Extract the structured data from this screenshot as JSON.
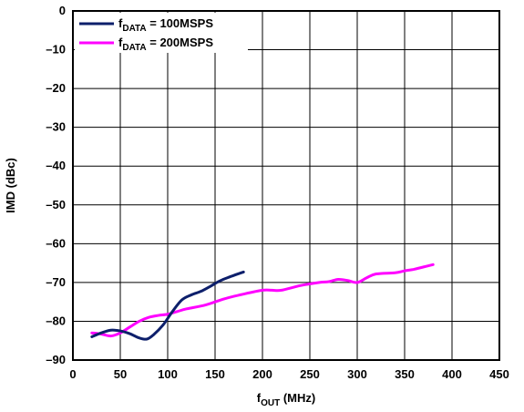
{
  "chart_data": {
    "type": "line",
    "xlabel": {
      "main": "f",
      "sub": "OUT",
      "rest": " (MHz)"
    },
    "ylabel": "IMD (dBc)",
    "xlim": [
      0,
      450
    ],
    "ylim": [
      -90,
      0
    ],
    "xticks": [
      0,
      50,
      100,
      150,
      200,
      250,
      300,
      350,
      400,
      450
    ],
    "yticks": [
      0,
      -10,
      -20,
      -30,
      -40,
      -50,
      -60,
      -70,
      -80,
      -90
    ],
    "xtick_labels": [
      "0",
      "50",
      "100",
      "150",
      "200",
      "250",
      "300",
      "350",
      "400",
      "450"
    ],
    "ytick_labels": [
      "0",
      "–10",
      "–20",
      "–30",
      "–40",
      "–50",
      "–60",
      "–70",
      "–80",
      "–90"
    ],
    "grid": true,
    "legend_position": "top-left",
    "series": [
      {
        "name": {
          "main": "f",
          "sub": "DATA",
          "rest": " = 100MSPS"
        },
        "color": "#0d1f6b",
        "x": [
          20,
          30,
          40,
          50,
          60,
          70,
          78,
          85,
          95,
          105,
          115,
          125,
          135,
          145,
          155,
          165,
          180
        ],
        "y": [
          -84,
          -83,
          -82.3,
          -82.5,
          -83.2,
          -84.3,
          -84.6,
          -83.5,
          -81,
          -77.5,
          -74.5,
          -73.2,
          -72.3,
          -71,
          -69.6,
          -68.6,
          -67.3
        ]
      },
      {
        "name": {
          "main": "f",
          "sub": "DATA",
          "rest": " = 200MSPS"
        },
        "color": "#ff00ff",
        "x": [
          20,
          30,
          40,
          50,
          60,
          70,
          80,
          90,
          100,
          110,
          120,
          140,
          160,
          180,
          200,
          210,
          220,
          240,
          260,
          270,
          280,
          290,
          300,
          310,
          320,
          340,
          350,
          360,
          370,
          380
        ],
        "y": [
          -83,
          -83.3,
          -83.8,
          -83,
          -81.5,
          -80,
          -79,
          -78.5,
          -78.2,
          -77.5,
          -76.8,
          -75.8,
          -74.2,
          -73,
          -72,
          -72,
          -72,
          -70.8,
          -70,
          -69.8,
          -69.2,
          -69.5,
          -70,
          -68.8,
          -67.8,
          -67.5,
          -67,
          -66.6,
          -66,
          -65.4
        ]
      }
    ]
  }
}
